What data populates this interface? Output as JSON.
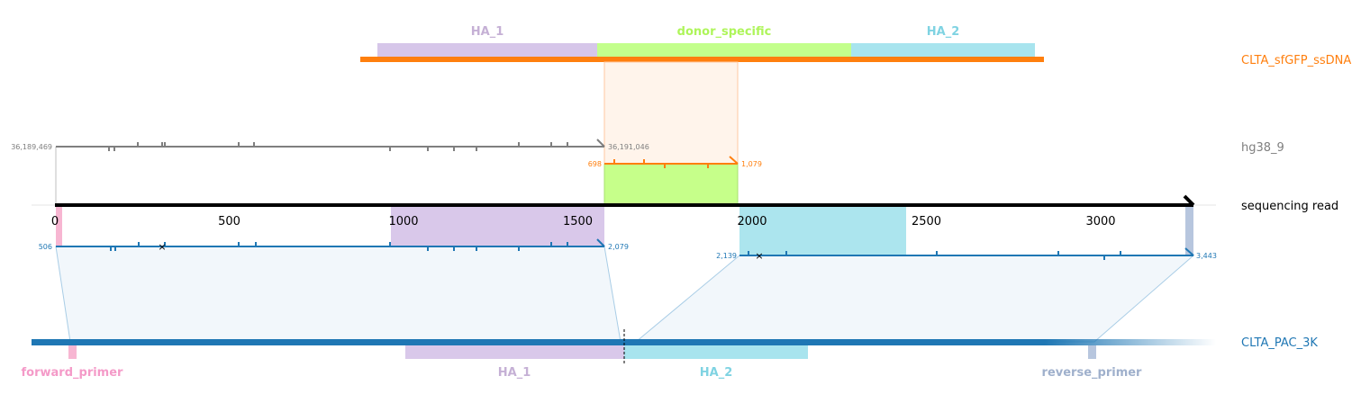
{
  "tracks": {
    "donor": "CLTA_sfGFP_ssDNA",
    "genome": "hg38_9",
    "read": "sequencing read",
    "amplicon": "CLTA_PAC_3K"
  },
  "colors": {
    "donor": "#ff7f0e",
    "genome": "#7f7f7f",
    "read": "#000000",
    "alignment": "#1f77b4",
    "amplicon": "#1f77b4",
    "HA_1": "#c5b0d5",
    "donor_specific": "#b5f55a",
    "HA_2": "#9edae5",
    "forward_primer": "#f7b6d2",
    "reverse_primer": "#aec7e8",
    "insert_fill": "#c6ff8a",
    "read_region_HA_1": "#d9c8ea",
    "read_region_HA_2": "#ace5ee"
  },
  "features": {
    "donor": [
      {
        "name": "HA_1",
        "color": "#c5b0d5",
        "label_color": "#c5b0d5"
      },
      {
        "name": "donor_specific",
        "color": "#c3ff8c",
        "label_color": "#aef55a"
      },
      {
        "name": "HA_2",
        "color": "#a8e4ee",
        "label_color": "#7fd3e2"
      }
    ],
    "amplicon": [
      {
        "name": "forward_primer",
        "color": "#f7b6d2",
        "label_color": "#f49ac8"
      },
      {
        "name": "HA_1",
        "color": "#d9c8ea",
        "label_color": "#c5b0d5"
      },
      {
        "name": "HA_2",
        "color": "#a8e4ee",
        "label_color": "#7fd3e2"
      },
      {
        "name": "reverse_primer",
        "color": "#b7c6de",
        "label_color": "#9fb0cc"
      }
    ]
  },
  "read_axis": {
    "ticks": [
      "0",
      "500",
      "1000",
      "1500",
      "2000",
      "2500",
      "3000"
    ],
    "length": 3270
  },
  "alignments": {
    "genome": {
      "start_label": "36,189,469",
      "end_label": "36,191,046"
    },
    "donor": {
      "start_label": "698",
      "end_label": "1,079"
    },
    "amplicon_1": {
      "start_label": "506",
      "end_label": "2,079"
    },
    "amplicon_2": {
      "start_label": "2,139",
      "end_label": "3,443"
    }
  }
}
